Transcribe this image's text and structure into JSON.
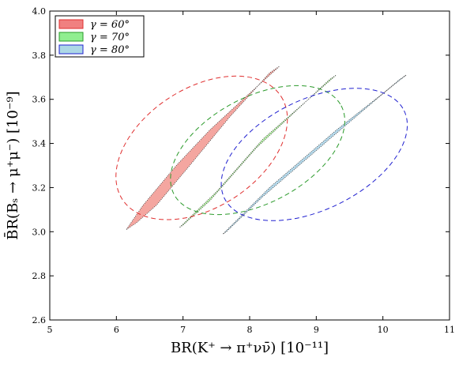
{
  "chart_data": {
    "type": "scatter",
    "xlabel": "BR(K⁺ → π⁺νν̄) [10⁻¹¹]",
    "ylabel": "B̄R(Bₛ → μ⁺μ⁻) [10⁻⁹]",
    "xlim": [
      5,
      11
    ],
    "ylim": [
      2.6,
      4.0
    ],
    "x_ticks": [
      "5",
      "6",
      "7",
      "8",
      "9",
      "10",
      "11"
    ],
    "y_ticks": [
      "2.6",
      "2.8",
      "3.0",
      "3.2",
      "3.4",
      "3.6",
      "3.8",
      "4.0"
    ],
    "grid": false,
    "legend_position": "top-left",
    "series": [
      {
        "name": "γ = 60°",
        "fill_color": "#f4a6a0",
        "legend_color": "#f08080",
        "edge_color": "#e03030",
        "band": [
          [
            6.15,
            3.01
          ],
          [
            6.4,
            3.12
          ],
          [
            6.9,
            3.3
          ],
          [
            7.4,
            3.46
          ],
          [
            7.9,
            3.6
          ],
          [
            8.45,
            3.75
          ],
          [
            8.3,
            3.72
          ],
          [
            7.7,
            3.52
          ],
          [
            7.1,
            3.3
          ],
          [
            6.6,
            3.12
          ],
          [
            6.3,
            3.04
          ]
        ],
        "ellipse": {
          "cx": 7.28,
          "cy": 3.38,
          "rx": 1.42,
          "ry": 0.27,
          "angle_deg": 33
        }
      },
      {
        "name": "γ = 70°",
        "fill_color": "#b7f0a8",
        "legend_color": "#90ee90",
        "edge_color": "#2a9a2a",
        "band": [
          [
            6.95,
            3.02
          ],
          [
            7.5,
            3.18
          ],
          [
            8.2,
            3.42
          ],
          [
            9.3,
            3.71
          ],
          [
            9.2,
            3.69
          ],
          [
            8.1,
            3.38
          ],
          [
            7.4,
            3.14
          ],
          [
            7.0,
            3.03
          ]
        ],
        "ellipse": {
          "cx": 8.12,
          "cy": 3.37,
          "rx": 1.42,
          "ry": 0.24,
          "angle_deg": 28
        }
      },
      {
        "name": "γ = 80°",
        "fill_color": "#b4d8ea",
        "legend_color": "#add8e6",
        "edge_color": "#2020d0",
        "band": [
          [
            7.6,
            2.99
          ],
          [
            8.3,
            3.2
          ],
          [
            9.3,
            3.46
          ],
          [
            10.35,
            3.71
          ],
          [
            10.25,
            3.69
          ],
          [
            9.2,
            3.42
          ],
          [
            8.2,
            3.16
          ],
          [
            7.65,
            3.0
          ]
        ],
        "ellipse": {
          "cx": 8.97,
          "cy": 3.35,
          "rx": 1.5,
          "ry": 0.25,
          "angle_deg": 26
        }
      }
    ]
  }
}
